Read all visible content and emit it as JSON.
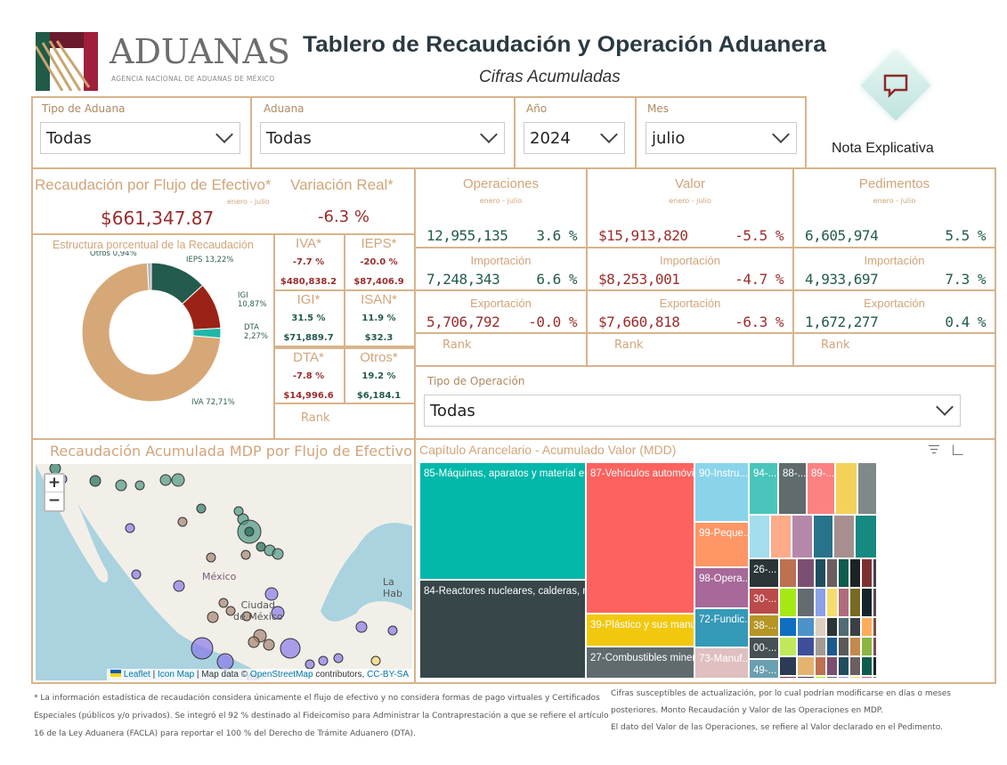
{
  "header": {
    "logo_word": "ADUANAS",
    "logo_sub": "AGENCIA NACIONAL DE ADUANAS DE MÉXICO",
    "title": "Tablero de Recaudación y Operación Aduanera",
    "subtitle": "Cifras Acumuladas",
    "nota": "Nota Explicativa"
  },
  "filters": [
    {
      "label": "Tipo de Aduana",
      "value": "Todas"
    },
    {
      "label": "Aduana",
      "value": "Todas"
    },
    {
      "label": "Año",
      "value": "2024"
    },
    {
      "label": "Mes",
      "value": "julio"
    }
  ],
  "recaudacion": {
    "title": "Recaudación por Flujo de Efectivo*",
    "period": "enero - julio",
    "value": "$661,347.87",
    "var_title": "Variación Real*",
    "var_value": "-6.3 %"
  },
  "estructura": {
    "title": "Estructura porcentual de la Recaudación"
  },
  "chart_data": {
    "type": "pie",
    "title": "Estructura porcentual de la Recaudación",
    "slices": [
      {
        "name": "IEPS",
        "label": "IEPS 13,22%",
        "value": 13.22,
        "color": "#235b4e"
      },
      {
        "name": "IGI",
        "label": "IGI 10,87%",
        "value": 10.87,
        "color": "#9b2217"
      },
      {
        "name": "DTA",
        "label": "DTA 2,27%",
        "value": 2.27,
        "color": "#1fb8a8"
      },
      {
        "name": "IVA",
        "label": "IVA 72,71%",
        "value": 72.71,
        "color": "#d6a878"
      },
      {
        "name": "Otros",
        "label": "Otros 0,94%",
        "value": 0.94,
        "color": "#b8b8b8"
      }
    ]
  },
  "impuestos": [
    {
      "name": "IVA*",
      "var": "-7.7 %",
      "amt": "$480,838.2"
    },
    {
      "name": "IEPS*",
      "var": "-20.0 %",
      "amt": "$87,406.9"
    },
    {
      "name": "IGI*",
      "var": "31.5 %",
      "amt": "$71,889.7"
    },
    {
      "name": "ISAN*",
      "var": "11.9 %",
      "amt": "$32.3"
    },
    {
      "name": "DTA*",
      "var": "-7.8 %",
      "amt": "$14,996.6"
    },
    {
      "name": "Otros*",
      "var": "19.2 %",
      "amt": "$6,184.1"
    }
  ],
  "rank": "Rank",
  "kpis": [
    {
      "title": "Operaciones",
      "period": "enero - julio",
      "total": "12,955,135",
      "total_var": "3.6 %",
      "imp_label": "Importación",
      "imp": "7,248,343",
      "imp_var": "6.6 %",
      "exp_label": "Exportación",
      "exp": "5,706,792",
      "exp_var": "-0.0 %"
    },
    {
      "title": "Valor",
      "period": "enero - julio",
      "total": "$15,913,820",
      "total_var": "-5.5 %",
      "imp_label": "Importación",
      "imp": "$8,253,001",
      "imp_var": "-4.7 %",
      "exp_label": "Exportación",
      "exp": "$7,660,818",
      "exp_var": "-6.3 %"
    },
    {
      "title": "Pedimentos",
      "period": "enero - julio",
      "total": "6,605,974",
      "total_var": "5.5 %",
      "imp_label": "Importación",
      "imp": "4,933,697",
      "imp_var": "7.3 %",
      "exp_label": "Exportación",
      "exp": "1,672,277",
      "exp_var": "0.4 %"
    }
  ],
  "tipo_operacion": {
    "label": "Tipo de Operación",
    "value": "Todas"
  },
  "map": {
    "title": "Recaudación Acumulada MDP por Flujo de Efectivo",
    "country": "México",
    "city1": "Ciudad",
    "city2": "de México",
    "havana": "La Hab",
    "attr_leaflet": "Leaflet",
    "attr_iconmap": "Icon Map",
    "attr_mapdata": "Map data ©",
    "attr_osm": "OpenStreetMap",
    "attr_contrib": "contributors,",
    "attr_cc": "CC-BY-SA",
    "zoom_in": "+",
    "zoom_out": "−"
  },
  "treemap": {
    "title": "Capítulo Arancelario - Acumulado Valor (MDD)",
    "items": [
      "85-Máquinas, aparatos y material eléct...",
      "84-Reactores nucleares, calderas, máq...",
      "87-Vehículos automóvil...",
      "39-Plástico y sus manuf...",
      "27-Combustibles miner...",
      "90-Instru...",
      "99-Peque...",
      "98-Opera...",
      "72-Fundic...",
      "73-Manuf...",
      "94-...",
      "88-...",
      "89-...",
      "26-...",
      "30-...",
      "38-...",
      "00-...",
      "49-..."
    ]
  },
  "footer": {
    "left1": "* La información estadística de recaudación considera únicamente el flujo de efectivo y no considera formas de pago virtuales y Certificados",
    "left2": "Especiales (públicos y/o privados).  Se integró el 92 % destinado al Fideicomiso para Administrar la Contraprestación a que se refiere el artículo",
    "left3": "16 de la Ley Aduanera (FACLA) para reportar el 100 % del Derecho de Trámite Aduanero (DTA).",
    "right1": "Cifras susceptibles de actualización, por lo cual podrían modificarse en días o meses",
    "right2": "posteriores. Monto Recaudación y Valor de las Operaciones en MDP.",
    "right3": "El dato del Valor de las Operaciones, se refiere al Valor declarado en el Pedimento."
  }
}
